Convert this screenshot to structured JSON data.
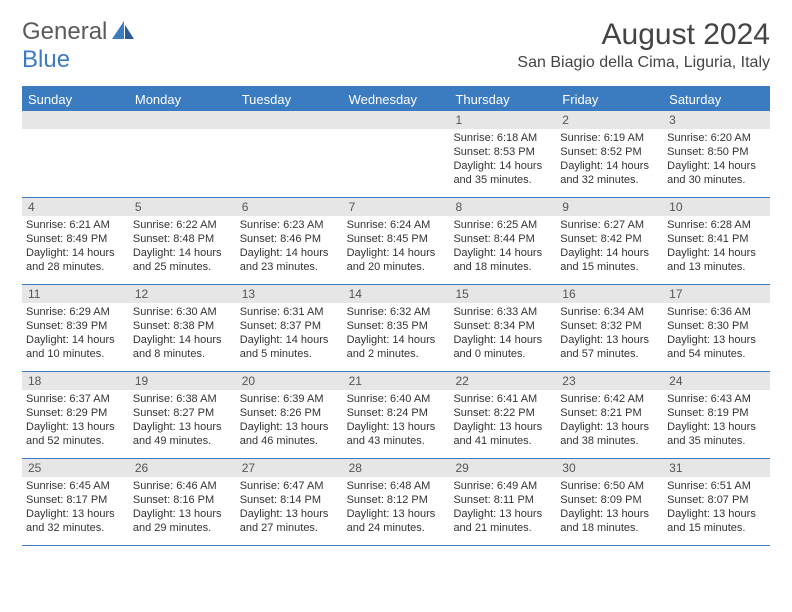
{
  "logo": {
    "text_general": "General",
    "text_blue": "Blue"
  },
  "title": "August 2024",
  "location": "San Biagio della Cima, Liguria, Italy",
  "colors": {
    "header_bar": "#3b7bbf",
    "daynum_bg": "#e6e6e6",
    "text": "#333333",
    "logo_gray": "#5a5a5a",
    "logo_blue": "#3b7bbf",
    "background": "#ffffff"
  },
  "weekdays": [
    "Sunday",
    "Monday",
    "Tuesday",
    "Wednesday",
    "Thursday",
    "Friday",
    "Saturday"
  ],
  "weeks": [
    [
      {
        "n": "",
        "sunrise": "",
        "sunset": "",
        "daylight": ""
      },
      {
        "n": "",
        "sunrise": "",
        "sunset": "",
        "daylight": ""
      },
      {
        "n": "",
        "sunrise": "",
        "sunset": "",
        "daylight": ""
      },
      {
        "n": "",
        "sunrise": "",
        "sunset": "",
        "daylight": ""
      },
      {
        "n": "1",
        "sunrise": "Sunrise: 6:18 AM",
        "sunset": "Sunset: 8:53 PM",
        "daylight": "Daylight: 14 hours and 35 minutes."
      },
      {
        "n": "2",
        "sunrise": "Sunrise: 6:19 AM",
        "sunset": "Sunset: 8:52 PM",
        "daylight": "Daylight: 14 hours and 32 minutes."
      },
      {
        "n": "3",
        "sunrise": "Sunrise: 6:20 AM",
        "sunset": "Sunset: 8:50 PM",
        "daylight": "Daylight: 14 hours and 30 minutes."
      }
    ],
    [
      {
        "n": "4",
        "sunrise": "Sunrise: 6:21 AM",
        "sunset": "Sunset: 8:49 PM",
        "daylight": "Daylight: 14 hours and 28 minutes."
      },
      {
        "n": "5",
        "sunrise": "Sunrise: 6:22 AM",
        "sunset": "Sunset: 8:48 PM",
        "daylight": "Daylight: 14 hours and 25 minutes."
      },
      {
        "n": "6",
        "sunrise": "Sunrise: 6:23 AM",
        "sunset": "Sunset: 8:46 PM",
        "daylight": "Daylight: 14 hours and 23 minutes."
      },
      {
        "n": "7",
        "sunrise": "Sunrise: 6:24 AM",
        "sunset": "Sunset: 8:45 PM",
        "daylight": "Daylight: 14 hours and 20 minutes."
      },
      {
        "n": "8",
        "sunrise": "Sunrise: 6:25 AM",
        "sunset": "Sunset: 8:44 PM",
        "daylight": "Daylight: 14 hours and 18 minutes."
      },
      {
        "n": "9",
        "sunrise": "Sunrise: 6:27 AM",
        "sunset": "Sunset: 8:42 PM",
        "daylight": "Daylight: 14 hours and 15 minutes."
      },
      {
        "n": "10",
        "sunrise": "Sunrise: 6:28 AM",
        "sunset": "Sunset: 8:41 PM",
        "daylight": "Daylight: 14 hours and 13 minutes."
      }
    ],
    [
      {
        "n": "11",
        "sunrise": "Sunrise: 6:29 AM",
        "sunset": "Sunset: 8:39 PM",
        "daylight": "Daylight: 14 hours and 10 minutes."
      },
      {
        "n": "12",
        "sunrise": "Sunrise: 6:30 AM",
        "sunset": "Sunset: 8:38 PM",
        "daylight": "Daylight: 14 hours and 8 minutes."
      },
      {
        "n": "13",
        "sunrise": "Sunrise: 6:31 AM",
        "sunset": "Sunset: 8:37 PM",
        "daylight": "Daylight: 14 hours and 5 minutes."
      },
      {
        "n": "14",
        "sunrise": "Sunrise: 6:32 AM",
        "sunset": "Sunset: 8:35 PM",
        "daylight": "Daylight: 14 hours and 2 minutes."
      },
      {
        "n": "15",
        "sunrise": "Sunrise: 6:33 AM",
        "sunset": "Sunset: 8:34 PM",
        "daylight": "Daylight: 14 hours and 0 minutes."
      },
      {
        "n": "16",
        "sunrise": "Sunrise: 6:34 AM",
        "sunset": "Sunset: 8:32 PM",
        "daylight": "Daylight: 13 hours and 57 minutes."
      },
      {
        "n": "17",
        "sunrise": "Sunrise: 6:36 AM",
        "sunset": "Sunset: 8:30 PM",
        "daylight": "Daylight: 13 hours and 54 minutes."
      }
    ],
    [
      {
        "n": "18",
        "sunrise": "Sunrise: 6:37 AM",
        "sunset": "Sunset: 8:29 PM",
        "daylight": "Daylight: 13 hours and 52 minutes."
      },
      {
        "n": "19",
        "sunrise": "Sunrise: 6:38 AM",
        "sunset": "Sunset: 8:27 PM",
        "daylight": "Daylight: 13 hours and 49 minutes."
      },
      {
        "n": "20",
        "sunrise": "Sunrise: 6:39 AM",
        "sunset": "Sunset: 8:26 PM",
        "daylight": "Daylight: 13 hours and 46 minutes."
      },
      {
        "n": "21",
        "sunrise": "Sunrise: 6:40 AM",
        "sunset": "Sunset: 8:24 PM",
        "daylight": "Daylight: 13 hours and 43 minutes."
      },
      {
        "n": "22",
        "sunrise": "Sunrise: 6:41 AM",
        "sunset": "Sunset: 8:22 PM",
        "daylight": "Daylight: 13 hours and 41 minutes."
      },
      {
        "n": "23",
        "sunrise": "Sunrise: 6:42 AM",
        "sunset": "Sunset: 8:21 PM",
        "daylight": "Daylight: 13 hours and 38 minutes."
      },
      {
        "n": "24",
        "sunrise": "Sunrise: 6:43 AM",
        "sunset": "Sunset: 8:19 PM",
        "daylight": "Daylight: 13 hours and 35 minutes."
      }
    ],
    [
      {
        "n": "25",
        "sunrise": "Sunrise: 6:45 AM",
        "sunset": "Sunset: 8:17 PM",
        "daylight": "Daylight: 13 hours and 32 minutes."
      },
      {
        "n": "26",
        "sunrise": "Sunrise: 6:46 AM",
        "sunset": "Sunset: 8:16 PM",
        "daylight": "Daylight: 13 hours and 29 minutes."
      },
      {
        "n": "27",
        "sunrise": "Sunrise: 6:47 AM",
        "sunset": "Sunset: 8:14 PM",
        "daylight": "Daylight: 13 hours and 27 minutes."
      },
      {
        "n": "28",
        "sunrise": "Sunrise: 6:48 AM",
        "sunset": "Sunset: 8:12 PM",
        "daylight": "Daylight: 13 hours and 24 minutes."
      },
      {
        "n": "29",
        "sunrise": "Sunrise: 6:49 AM",
        "sunset": "Sunset: 8:11 PM",
        "daylight": "Daylight: 13 hours and 21 minutes."
      },
      {
        "n": "30",
        "sunrise": "Sunrise: 6:50 AM",
        "sunset": "Sunset: 8:09 PM",
        "daylight": "Daylight: 13 hours and 18 minutes."
      },
      {
        "n": "31",
        "sunrise": "Sunrise: 6:51 AM",
        "sunset": "Sunset: 8:07 PM",
        "daylight": "Daylight: 13 hours and 15 minutes."
      }
    ]
  ]
}
